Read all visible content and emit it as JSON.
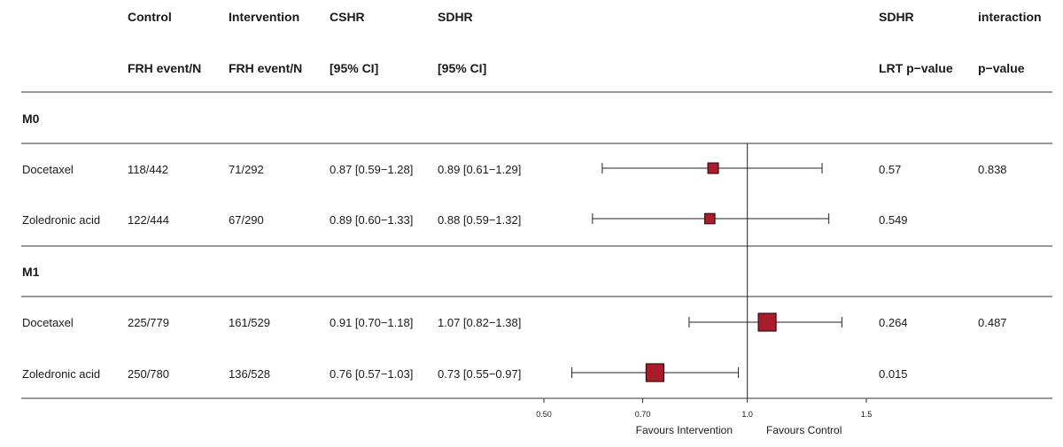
{
  "headers": {
    "control": [
      "Control",
      "FRH event/N"
    ],
    "intervention": [
      "Intervention",
      "FRH event/N"
    ],
    "cshr": [
      "CSHR",
      "[95% CI]"
    ],
    "sdhr": [
      "SDHR",
      "[95% CI]"
    ],
    "lrt": [
      "SDHR",
      "LRT p−value"
    ],
    "interaction": [
      "interaction",
      "p−value"
    ]
  },
  "favours": {
    "left": "Favours Intervention",
    "right": "Favours Control"
  },
  "colors": {
    "marker": "#a81c2c",
    "marker_stroke": "#3a0a10",
    "line": "#222222"
  },
  "chart_data": {
    "type": "forest",
    "x_ticks": [
      0.5,
      0.7,
      1.0,
      1.5
    ],
    "x_tick_labels": [
      "0.50",
      "0.70",
      "1.0",
      "1.5"
    ],
    "x_scale": "log",
    "reference_line": 1.0,
    "groups": [
      {
        "label": "M0",
        "rows": [
          {
            "treatment": "Docetaxel",
            "control": "118/442",
            "intervention": "71/292",
            "cshr": "0.87 [0.59−1.28]",
            "sdhr": "0.89 [0.61−1.29]",
            "lrt_p": "0.57",
            "interaction_p": "0.838",
            "est": 0.89,
            "lo": 0.61,
            "hi": 1.29,
            "weight": 0.35
          },
          {
            "treatment": "Zoledronic acid",
            "control": "122/444",
            "intervention": "67/290",
            "cshr": "0.89 [0.60−1.33]",
            "sdhr": "0.88 [0.59−1.32]",
            "lrt_p": "0.549",
            "interaction_p": "",
            "est": 0.88,
            "lo": 0.59,
            "hi": 1.32,
            "weight": 0.33
          }
        ]
      },
      {
        "label": "M1",
        "rows": [
          {
            "treatment": "Docetaxel",
            "control": "225/779",
            "intervention": "161/529",
            "cshr": "0.91 [0.70−1.18]",
            "sdhr": "1.07 [0.82−1.38]",
            "lrt_p": "0.264",
            "interaction_p": "0.487",
            "est": 1.07,
            "lo": 0.82,
            "hi": 1.38,
            "weight": 1.0
          },
          {
            "treatment": "Zoledronic acid",
            "control": "250/780",
            "intervention": "136/528",
            "cshr": "0.76 [0.57−1.03]",
            "sdhr": "0.73 [0.55−0.97]",
            "lrt_p": "0.015",
            "interaction_p": "",
            "est": 0.73,
            "lo": 0.55,
            "hi": 0.97,
            "weight": 1.0
          }
        ]
      }
    ]
  }
}
